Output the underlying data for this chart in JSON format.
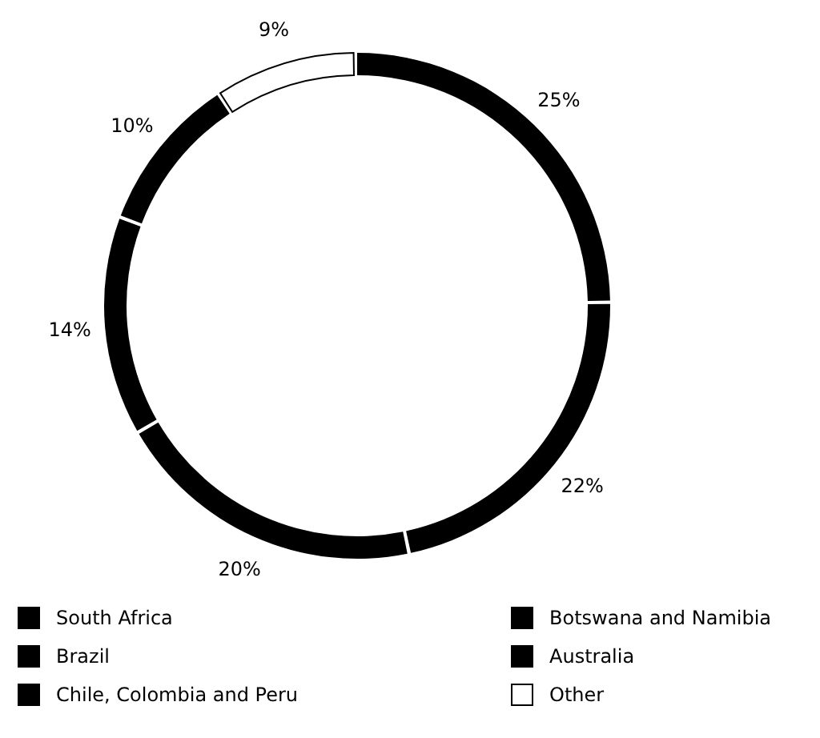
{
  "chart_data": {
    "type": "donut",
    "categories": [
      "South Africa",
      "Brazil",
      "Chile, Colombia and Peru",
      "Botswana and Namibia",
      "Australia",
      "Other"
    ],
    "values": [
      25,
      22,
      20,
      14,
      10,
      9
    ],
    "colors": [
      "#000000",
      "#000000",
      "#000000",
      "#000000",
      "#000000",
      "#ffffff"
    ],
    "value_labels": [
      "25%",
      "22%",
      "20%",
      "14%",
      "10%",
      "9%"
    ],
    "legend": "bottom"
  }
}
